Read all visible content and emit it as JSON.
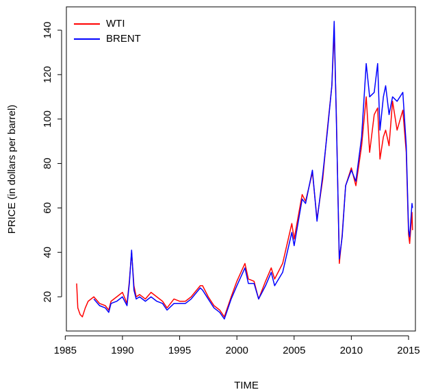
{
  "chart_data": {
    "type": "line",
    "xlabel": "TIME",
    "ylabel": "PRICE (in dollars per barrel)",
    "x": [
      1986.0,
      1986.1,
      1986.3,
      1986.5,
      1986.75,
      1987.0,
      1987.5,
      1988.0,
      1988.5,
      1988.8,
      1989.0,
      1989.5,
      1990.0,
      1990.4,
      1990.6,
      1990.8,
      1991.0,
      1991.2,
      1991.5,
      1992.0,
      1992.5,
      1993.0,
      1993.5,
      1993.9,
      1994.5,
      1995.0,
      1995.5,
      1996.0,
      1996.8,
      1997.0,
      1997.5,
      1998.0,
      1998.5,
      1998.9,
      1999.5,
      2000.0,
      2000.7,
      2001.0,
      2001.5,
      2001.9,
      2002.5,
      2003.0,
      2003.3,
      2004.0,
      2004.8,
      2005.0,
      2005.7,
      2006.0,
      2006.6,
      2007.0,
      2007.5,
      2007.9,
      2008.3,
      2008.5,
      2008.7,
      2008.95,
      2009.2,
      2009.5,
      2010.0,
      2010.4,
      2010.9,
      2011.3,
      2011.6,
      2012.0,
      2012.3,
      2012.5,
      2012.8,
      2013.0,
      2013.3,
      2013.6,
      2014.0,
      2014.5,
      2014.8,
      2015.0,
      2015.1,
      2015.3,
      2015.35
    ],
    "series": [
      {
        "name": "WTI",
        "color": "#ff0000",
        "values": [
          26,
          15,
          12,
          11,
          15,
          18,
          20,
          17,
          16,
          14,
          18,
          20,
          22,
          17,
          27,
          40,
          25,
          20,
          21,
          19,
          22,
          20,
          18,
          15,
          19,
          18,
          18,
          20,
          25,
          25,
          20,
          16,
          14,
          11,
          20,
          27,
          35,
          28,
          27,
          19,
          27,
          33,
          28,
          35,
          53,
          46,
          66,
          63,
          76,
          55,
          73,
          95,
          115,
          140,
          100,
          35,
          48,
          70,
          78,
          70,
          88,
          110,
          85,
          102,
          105,
          82,
          92,
          95,
          88,
          108,
          95,
          104,
          85,
          48,
          44,
          58,
          50
        ]
      },
      {
        "name": "BRENT",
        "color": "#0000ff",
        "values": [
          null,
          null,
          null,
          null,
          null,
          null,
          19,
          16,
          15,
          13,
          17,
          18,
          20,
          16,
          26,
          41,
          23,
          19,
          20,
          18,
          20,
          18,
          17,
          14,
          17,
          17,
          17,
          19,
          24,
          23,
          19,
          15,
          13,
          10,
          19,
          25,
          33,
          26,
          26,
          19,
          25,
          31,
          25,
          31,
          49,
          43,
          64,
          62,
          77,
          54,
          75,
          94,
          115,
          144,
          98,
          37,
          47,
          70,
          77,
          72,
          92,
          125,
          110,
          112,
          125,
          95,
          110,
          115,
          102,
          110,
          108,
          112,
          88,
          50,
          47,
          62,
          60
        ]
      }
    ],
    "xlim": [
      1985.1,
      2015.6
    ],
    "xticks": [
      1985,
      1990,
      1995,
      2000,
      2005,
      2010,
      2015
    ],
    "ylim": [
      4.6,
      150.5
    ],
    "yticks": [
      20,
      40,
      60,
      80,
      100,
      120,
      140
    ],
    "legend": "top-left"
  }
}
